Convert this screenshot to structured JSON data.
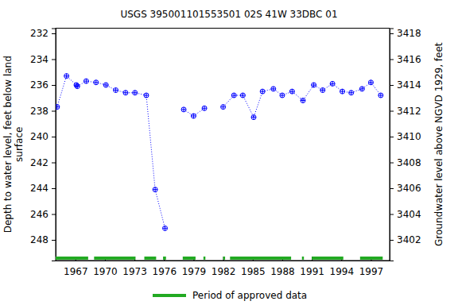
{
  "chart_data": {
    "type": "line",
    "title": "USGS 395001101553501 02S 41W 33DBC 01",
    "ylabel": "Depth to water level, feet below land\nsurface",
    "y2label": "Groundwater level above NGVD 1929, feet",
    "x": [
      1965.15,
      1966.1,
      1967.1,
      1967.2,
      1968.1,
      1969.1,
      1970.1,
      1971.1,
      1972.1,
      1973.05,
      1974.2,
      1975.1,
      1976.1,
      null,
      1978.0,
      1979.0,
      1980.1,
      null,
      1982.0,
      1983.1,
      1984.0,
      1985.1,
      1986.0,
      1987.1,
      1988.0,
      1989.0,
      1990.1,
      1991.2,
      1992.1,
      1993.1,
      1994.1,
      1995.0,
      1996.1,
      1997.0,
      1998.0
    ],
    "series": [
      {
        "color": "#0000ff",
        "marker": "circle-plus",
        "line_style": "dotted",
        "values": [
          237.7,
          235.3,
          236.0,
          236.1,
          235.7,
          235.8,
          236.0,
          236.4,
          236.6,
          236.6,
          236.8,
          244.1,
          247.1,
          null,
          237.9,
          238.4,
          237.8,
          null,
          237.7,
          236.8,
          236.8,
          238.5,
          236.5,
          236.3,
          236.8,
          236.5,
          237.2,
          236.0,
          236.4,
          235.9,
          236.5,
          236.6,
          236.3,
          235.8,
          236.8
        ]
      }
    ],
    "xlim": [
      1965.0,
      1998.9
    ],
    "xticks": [
      1967,
      1970,
      1973,
      1976,
      1979,
      1982,
      1985,
      1988,
      1991,
      1994,
      1997
    ],
    "ylim": [
      231.6,
      249.6
    ],
    "yticks": [
      232,
      234,
      236,
      238,
      240,
      242,
      244,
      246,
      248
    ],
    "y2lim": [
      3418.4,
      3400.4
    ],
    "y2ticks": [
      3418,
      3416,
      3414,
      3412,
      3410,
      3408,
      3406,
      3404,
      3402
    ],
    "approved_periods": {
      "label": "Period of approved data",
      "color": "#22aa22",
      "ranges": [
        [
          1965.0,
          1968.3
        ],
        [
          1968.9,
          1973.1
        ],
        [
          1974.0,
          1975.2
        ],
        [
          1975.9,
          1976.2
        ],
        [
          1977.9,
          1979.2
        ],
        [
          1980.0,
          1980.2
        ],
        [
          1982.0,
          1982.2
        ],
        [
          1982.7,
          1988.9
        ],
        [
          1990.0,
          1990.2
        ],
        [
          1991.0,
          1994.2
        ],
        [
          1995.9,
          1998.2
        ]
      ]
    }
  }
}
